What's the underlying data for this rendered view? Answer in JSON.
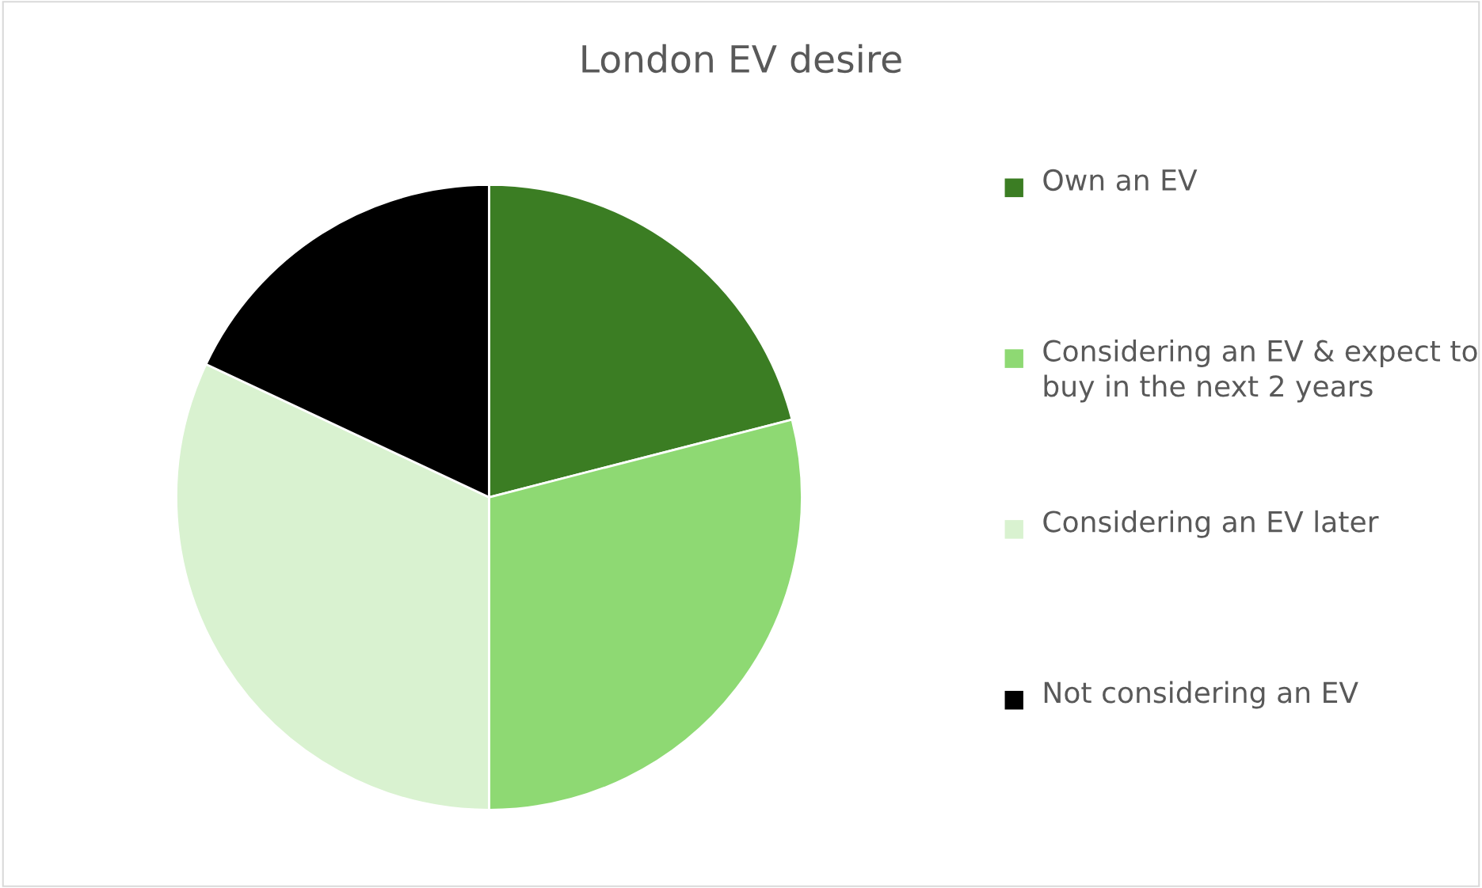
{
  "chart_data": {
    "type": "pie",
    "title": "London EV desire",
    "categories": [
      "Own an EV",
      "Considering an EV & expect to buy in the next 2 years",
      "Considering an EV later",
      "Not considering an EV"
    ],
    "values": [
      21,
      29,
      32,
      18
    ],
    "colors": [
      "#3b7d23",
      "#8ed973",
      "#d9f2d0",
      "#000000"
    ],
    "legend": "right"
  }
}
